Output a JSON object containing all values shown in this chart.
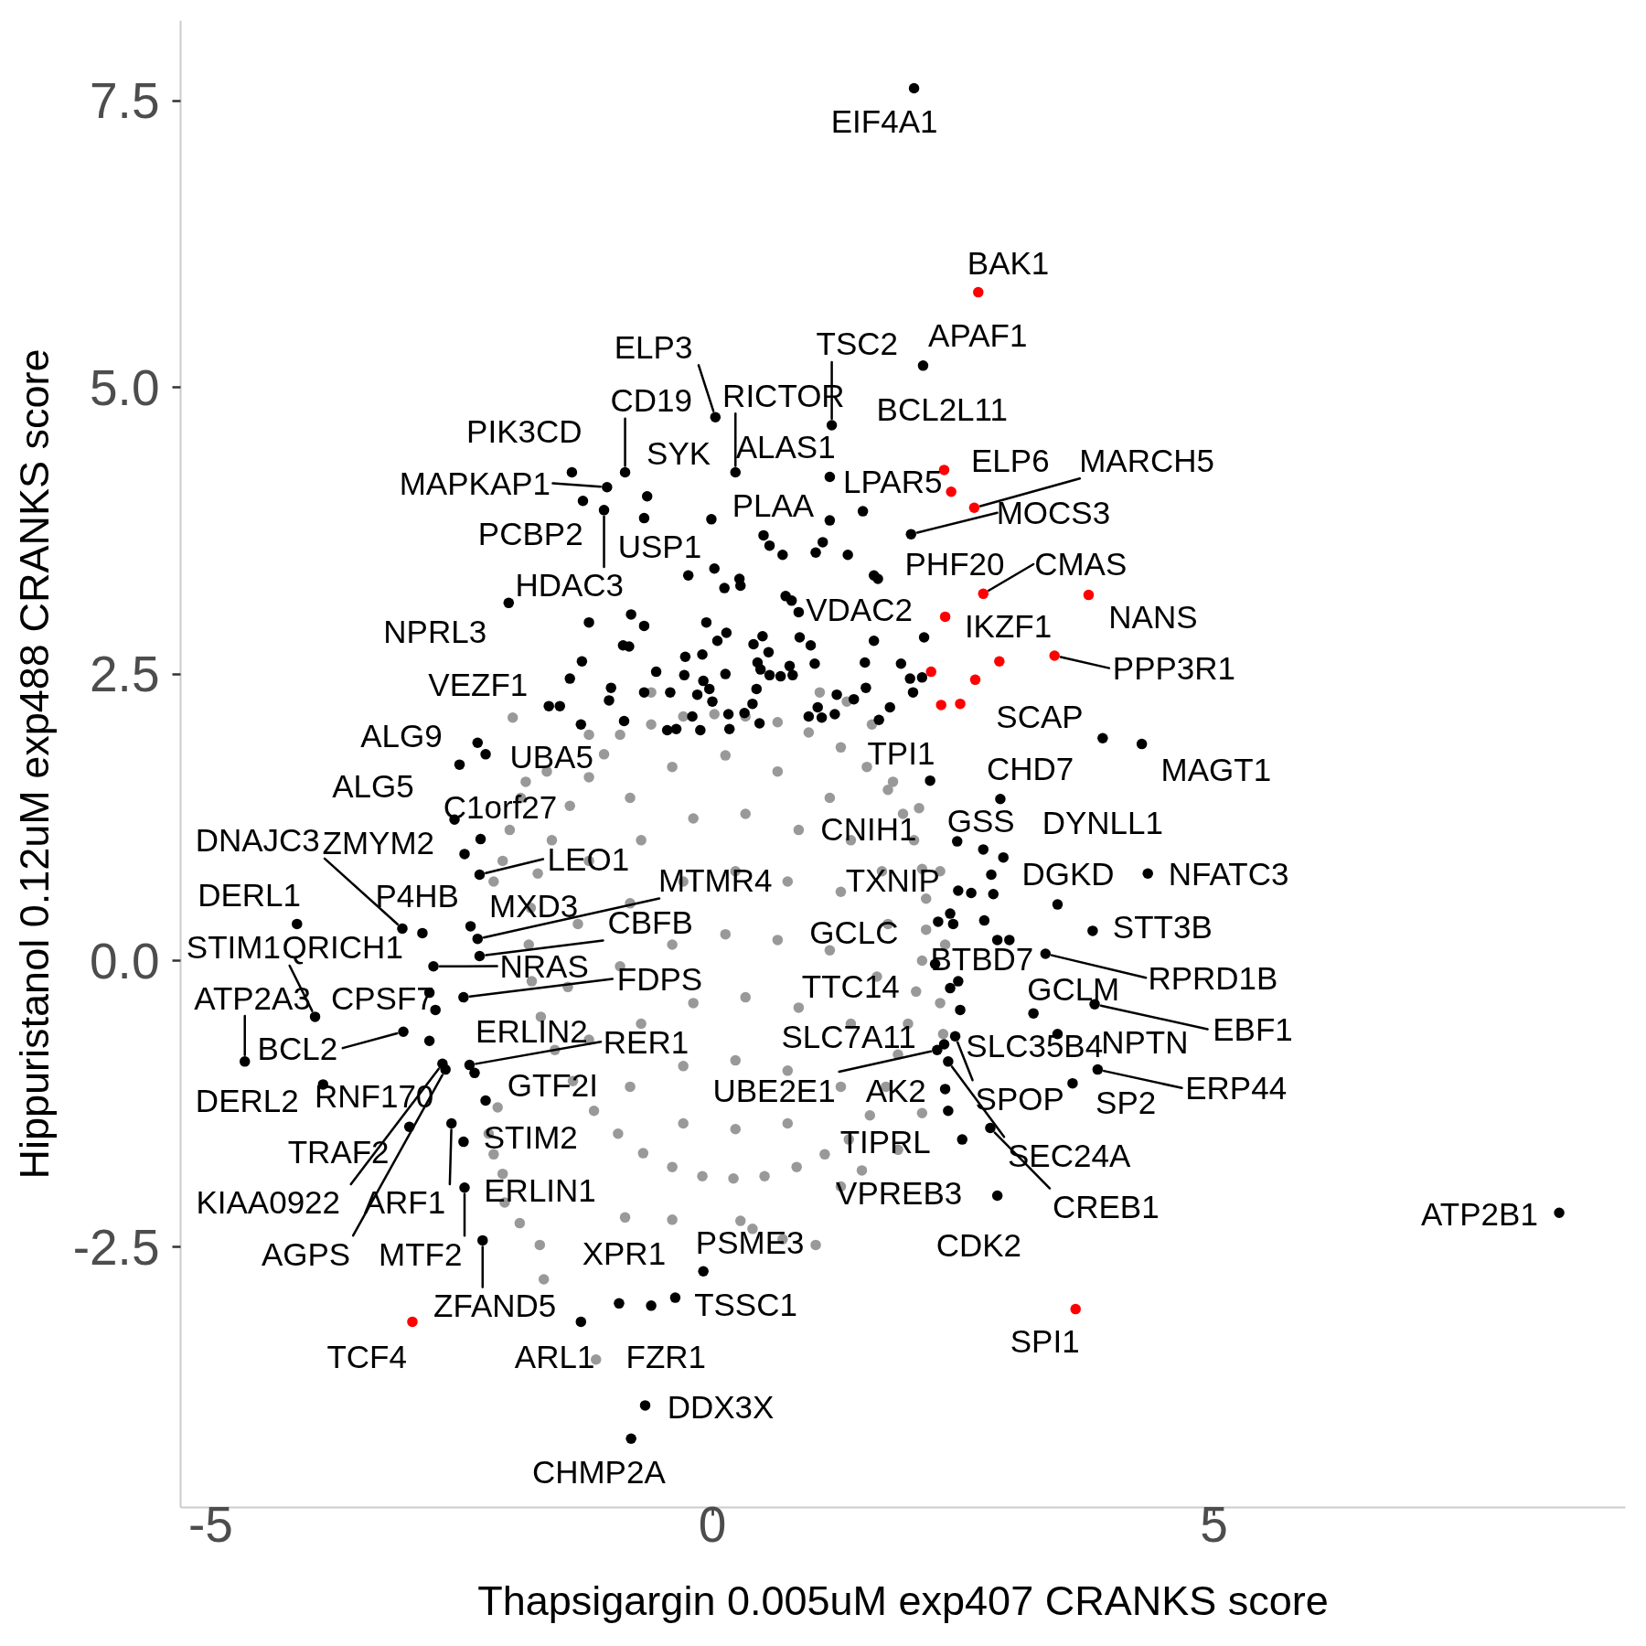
{
  "chart_data": {
    "type": "scatter",
    "xlabel": "Thapsigargin 0.005uM exp407 CRANKS score",
    "ylabel": "Hippuristanol 0.12uM exp488 CRANKS score",
    "xlim": [
      -5.3,
      9.1
    ],
    "ylim": [
      -4.77,
      8.2
    ],
    "xticks": [
      -5,
      0,
      5
    ],
    "yticks": [
      -2.5,
      {
        "value": 0,
        "label": "0.0"
      },
      2.5,
      {
        "value": 5,
        "label": "5.0"
      },
      7.5
    ],
    "marker": "circle",
    "series": [
      {
        "color": "#999999",
        "x": [
          -0.92,
          -0.61,
          -0.29,
          0.02,
          0.33,
          0.65,
          0.96,
          1.28,
          1.54,
          1.75,
          1.9,
          2.01,
          2.09,
          2.13,
          2.13,
          2.09,
          2.03,
          1.95,
          1.85,
          1.73,
          1.57,
          1.36,
          1.12,
          0.84,
          0.52,
          0.21,
          -0.1,
          -0.4,
          -0.69,
          -0.94,
          -1.18,
          -1.39,
          -1.57,
          -1.71,
          -1.8,
          -1.83,
          -1.81,
          -1.74,
          -1.6,
          -1.42,
          -1.23,
          -1.08,
          -0.82,
          -0.4,
          0.13,
          0.65,
          1.17,
          -1.23,
          -0.71,
          -0.19,
          0.33,
          0.86,
          1.38,
          1.69,
          -1.34,
          -0.82,
          -0.29,
          0.23,
          0.75,
          1.28,
          1.75,
          -1.44,
          -0.92,
          -0.4,
          0.13,
          0.65,
          1.17,
          1.64,
          -1.23,
          -0.71,
          -0.19,
          0.33,
          0.86,
          1.38,
          -0.82,
          -0.29,
          0.23,
          0.75,
          1.28,
          -0.29,
          0.23,
          0.75,
          -1.99,
          -1.16,
          -1.68,
          -1.72,
          -1.92,
          -2.07,
          -2.09,
          -2.18,
          -2.23,
          -2.14,
          -2.18,
          -2.09,
          -2.02,
          -1.91,
          -1.86,
          -1.65,
          -0.87,
          -0.4,
          0.28,
          0.4,
          0.7,
          1.03,
          1.28,
          1.49,
          1.85,
          2.09,
          2.3,
          2.27,
          2.32,
          2.27,
          2.06,
          1.8,
          1.59,
          1.34,
          1.07,
          -0.61,
          -1.23
        ],
        "values": [
          1.97,
          2.06,
          2.13,
          2.15,
          2.13,
          2.08,
          1.99,
          1.86,
          1.69,
          1.49,
          1.28,
          1.05,
          0.8,
          0.54,
          0.27,
          0.0,
          -0.27,
          -0.55,
          -0.82,
          -1.1,
          -1.35,
          -1.56,
          -1.69,
          -1.8,
          -1.88,
          -1.9,
          -1.88,
          -1.8,
          -1.68,
          -1.51,
          -1.31,
          -1.05,
          -0.78,
          -0.49,
          -0.18,
          0.14,
          0.46,
          0.76,
          1.05,
          1.35,
          1.6,
          1.8,
          1.42,
          1.69,
          1.79,
          1.65,
          1.42,
          0.87,
          1.05,
          1.24,
          1.28,
          1.14,
          1.05,
          0.78,
          0.32,
          0.5,
          0.69,
          0.78,
          0.69,
          0.6,
          0.32,
          -0.23,
          -0.05,
          0.14,
          0.23,
          0.18,
          0.09,
          -0.14,
          -0.69,
          -0.55,
          -0.37,
          -0.32,
          -0.41,
          -0.55,
          -1.1,
          -0.92,
          -0.87,
          -0.96,
          -1.1,
          -1.42,
          -1.47,
          -1.42,
          2.12,
          -3.48,
          -2.78,
          -2.48,
          -2.29,
          -2.11,
          -1.86,
          -1.69,
          -1.51,
          -1.28,
          0.69,
          0.87,
          1.14,
          1.42,
          1.56,
          1.65,
          -2.24,
          -2.26,
          -2.27,
          -2.34,
          -2.43,
          -2.48,
          -1.97,
          -1.83,
          -1.65,
          -1.33,
          -0.64,
          -0.37,
          0.14,
          0.78,
          1.33,
          1.56,
          2.06,
          2.26,
          2.34,
          2.34,
          1.97
        ]
      },
      {
        "color": "#000000",
        "x": [
          2.01,
          2.1,
          1.19,
          0.03,
          -0.87,
          0.23,
          -1.4,
          -0.65,
          1.17,
          -1.05,
          1.5,
          1.98,
          0.51,
          -1.29,
          -0.68,
          1.65,
          -1.08,
          0.86,
          -2.03,
          -1.63,
          3.89,
          -2.34,
          -2.26,
          2.17,
          2.87,
          4.28,
          -2.52,
          -2.57,
          2.7,
          2.9,
          2.44,
          -3.09,
          -2.47,
          -2.32,
          4.34,
          -2.34,
          3.44,
          2.45,
          -4.14,
          -2.89,
          -2.41,
          -3.96,
          -2.82,
          -2.32,
          3.79,
          2.25,
          2.45,
          3.32,
          -4.66,
          -2.76,
          -2.78,
          -2.48,
          2.37,
          3.2,
          -3.08,
          -2.37,
          -2.42,
          2.31,
          3.81,
          3.44,
          2.47,
          -3.88,
          -2.82,
          -2.26,
          2.24,
          2.32,
          3.84,
          2.42,
          3.59,
          -3.02,
          -2.48,
          2.35,
          2.35,
          -2.69,
          -2.6,
          2.49,
          2.77,
          8.44,
          -2.66,
          -2.47,
          -0.93,
          -0.09,
          2.84,
          -2.29,
          -0.37,
          -1.31,
          -0.61,
          -0.67,
          -0.81,
          -0.01,
          1.17,
          0.57,
          0.7,
          1.1,
          1.03,
          1.35,
          -0.24,
          0.02,
          0.27,
          0.12,
          0.28,
          1.61,
          0.73,
          0.79,
          -0.68,
          -0.06,
          0.14,
          0.05,
          0.87,
          0.98,
          1.61,
          2.11,
          -0.27,
          -0.1,
          -0.56,
          -0.28,
          0.13,
          -0.09,
          0.41,
          0.5,
          0.56,
          0.45,
          0.48,
          0.57,
          0.68,
          0.77,
          0.8,
          0.44,
          1.02,
          1.52,
          1.88,
          1.97,
          2.09,
          2.0,
          -0.42,
          -0.15,
          -0.03,
          0.0,
          0.16,
          -0.2,
          -0.36,
          -0.12,
          -0.45,
          0.17,
          0.32,
          0.4,
          0.47,
          1.24,
          1.41,
          1.53,
          1.05,
          0.96,
          1.09,
          1.22,
          1.77,
          1.66,
          -1.23,
          -0.81,
          -0.89,
          -0.83,
          -1.3,
          -1.42,
          -1.01,
          -1.03,
          -1.52,
          -1.31,
          -0.88,
          -0.68,
          2.78,
          2.58,
          2.8,
          2.4,
          2.37,
          2.71,
          2.84,
          2.96,
          2.22,
          -2.31
        ],
        "values": [
          7.61,
          5.19,
          4.67,
          4.74,
          4.26,
          4.26,
          4.26,
          4.05,
          4.22,
          4.13,
          3.92,
          3.72,
          3.71,
          4.01,
          3.86,
          3.33,
          3.93,
          3.04,
          3.12,
          2.22,
          1.94,
          1.9,
          1.8,
          1.57,
          1.41,
          1.89,
          1.71,
          1.23,
          0.97,
          0.9,
          1.04,
          0.28,
          0.93,
          0.75,
          0.76,
          0.19,
          0.49,
          0.61,
          0.32,
          0.24,
          0.3,
          -0.49,
          -0.28,
          0.04,
          0.26,
          0.34,
          -0.18,
          0.06,
          -0.88,
          -0.43,
          -0.05,
          -0.32,
          -0.24,
          -0.46,
          -0.62,
          -0.98,
          -0.91,
          -0.73,
          -0.38,
          -0.64,
          -0.43,
          -1.08,
          -0.7,
          -1.22,
          -0.78,
          -1.12,
          -0.95,
          -0.66,
          -1.07,
          -1.45,
          -1.58,
          -1.31,
          -0.88,
          -0.9,
          -1.42,
          -1.56,
          -1.46,
          -2.2,
          -0.95,
          -1.98,
          -2.99,
          -2.71,
          -2.05,
          -2.44,
          -2.94,
          -3.15,
          -3.01,
          -3.88,
          -4.17,
          3.85,
          3.84,
          3.62,
          3.54,
          3.65,
          3.56,
          3.54,
          3.36,
          3.42,
          3.33,
          3.25,
          3.27,
          3.36,
          3.18,
          3.14,
          2.92,
          2.95,
          2.86,
          2.79,
          2.82,
          2.75,
          2.79,
          2.82,
          2.65,
          2.67,
          2.52,
          2.49,
          2.5,
          2.44,
          2.76,
          2.83,
          2.69,
          2.6,
          2.54,
          2.49,
          2.48,
          2.57,
          2.49,
          2.37,
          2.59,
          2.6,
          2.59,
          2.46,
          2.47,
          2.34,
          2.34,
          2.32,
          2.37,
          2.26,
          2.15,
          2.13,
          2.02,
          2.01,
          2.01,
          2.02,
          2.16,
          2.24,
          2.07,
          2.32,
          2.28,
          2.38,
          2.21,
          2.13,
          2.12,
          2.15,
          2.21,
          2.1,
          2.95,
          3.02,
          2.75,
          2.74,
          2.61,
          2.46,
          2.38,
          2.27,
          2.22,
          2.06,
          2.09,
          2.34,
          0.75,
          0.59,
          0.58,
          0.32,
          0.41,
          0.35,
          0.18,
          0.18,
          -0.03,
          1.06
        ]
      },
      {
        "color": "#ff0000",
        "x": [
          2.65,
          2.31,
          2.38,
          2.61,
          2.7,
          3.75,
          2.32,
          3.41,
          -2.99,
          3.62,
          2.86,
          2.18,
          2.62,
          2.28,
          2.47
        ],
        "values": [
          5.83,
          4.28,
          4.09,
          3.95,
          3.2,
          3.19,
          3.0,
          2.66,
          -3.15,
          -3.04,
          2.61,
          2.52,
          2.45,
          2.23,
          2.24
        ]
      }
    ],
    "annotations": [
      {
        "text": "EIF4A1",
        "x": 2.01,
        "y": 7.61
      },
      {
        "text": "BAK1",
        "x": 2.65,
        "y": 5.83
      },
      {
        "text": "APAF1",
        "x": 2.1,
        "y": 5.19
      },
      {
        "text": "TSC2",
        "x": 1.19,
        "y": 4.67
      },
      {
        "text": "ELP3",
        "x": 0.03,
        "y": 4.74
      },
      {
        "text": "CD19",
        "x": -0.87,
        "y": 4.26
      },
      {
        "text": "RICTOR",
        "x": 0.23,
        "y": 4.26
      },
      {
        "text": "BCL2L11",
        "x": 2.31,
        "y": 4.28
      },
      {
        "text": "PIK3CD",
        "x": -1.4,
        "y": 4.26
      },
      {
        "text": "SYK",
        "x": -0.65,
        "y": 4.05
      },
      {
        "text": "ALAS1",
        "x": 1.17,
        "y": 4.22
      },
      {
        "text": "MAPKAP1",
        "x": -1.05,
        "y": 4.13
      },
      {
        "text": "ELP6",
        "x": 2.38,
        "y": 4.09
      },
      {
        "text": "MARCH5",
        "x": 2.61,
        "y": 3.95
      },
      {
        "text": "LPAR5",
        "x": 1.5,
        "y": 3.92
      },
      {
        "text": "MOCS3",
        "x": 1.98,
        "y": 3.72
      },
      {
        "text": "PLAA",
        "x": 0.51,
        "y": 3.71
      },
      {
        "text": "PCBP2",
        "x": -1.29,
        "y": 4.01
      },
      {
        "text": "USP1",
        "x": -0.68,
        "y": 3.86
      },
      {
        "text": "PHF20",
        "x": 1.65,
        "y": 3.33
      },
      {
        "text": "CMAS",
        "x": 2.7,
        "y": 3.2
      },
      {
        "text": "HDAC3",
        "x": -1.08,
        "y": 3.93
      },
      {
        "text": "NANS",
        "x": 3.75,
        "y": 3.19
      },
      {
        "text": "VDAC2",
        "x": 0.86,
        "y": 3.04
      },
      {
        "text": "IKZF1",
        "x": 2.32,
        "y": 3.0
      },
      {
        "text": "NPRL3",
        "x": -2.03,
        "y": 3.12
      },
      {
        "text": "PPP3R1",
        "x": 3.41,
        "y": 2.66
      },
      {
        "text": "VEZF1",
        "x": -1.63,
        "y": 2.22
      },
      {
        "text": "SCAP",
        "x": 3.89,
        "y": 1.94
      },
      {
        "text": "ALG9",
        "x": -2.34,
        "y": 1.9
      },
      {
        "text": "UBA5",
        "x": -2.26,
        "y": 1.8
      },
      {
        "text": "TPI1",
        "x": 2.17,
        "y": 1.57
      },
      {
        "text": "CHD7",
        "x": 2.87,
        "y": 1.41
      },
      {
        "text": "MAGT1",
        "x": 4.28,
        "y": 1.89
      },
      {
        "text": "ALG5",
        "x": -2.52,
        "y": 1.71
      },
      {
        "text": "C1orf27",
        "x": -2.57,
        "y": 1.23
      },
      {
        "text": "GSS",
        "x": 2.7,
        "y": 0.97
      },
      {
        "text": "DYNLL1",
        "x": 2.9,
        "y": 0.9
      },
      {
        "text": "CNIH1",
        "x": 2.44,
        "y": 1.04
      },
      {
        "text": "DNAJC3",
        "x": -3.09,
        "y": 0.28
      },
      {
        "text": "ZMYM2",
        "x": -2.47,
        "y": 0.93
      },
      {
        "text": "LEO1",
        "x": -2.32,
        "y": 0.75
      },
      {
        "text": "NFATC3",
        "x": 4.34,
        "y": 0.76
      },
      {
        "text": "MTMR4",
        "x": -2.34,
        "y": 0.19
      },
      {
        "text": "DGKD",
        "x": 3.44,
        "y": 0.49
      },
      {
        "text": "TXNIP",
        "x": 2.45,
        "y": 0.61
      },
      {
        "text": "DERL1",
        "x": -4.14,
        "y": 0.32
      },
      {
        "text": "P4HB",
        "x": -2.89,
        "y": 0.24
      },
      {
        "text": "MXD3",
        "x": -2.41,
        "y": 0.3
      },
      {
        "text": "STIM1",
        "x": -3.96,
        "y": -0.49
      },
      {
        "text": "QRICH1",
        "x": -2.82,
        "y": -0.28
      },
      {
        "text": "CBFB",
        "x": -2.32,
        "y": 0.04
      },
      {
        "text": "STT3B",
        "x": 3.79,
        "y": 0.26
      },
      {
        "text": "GCLC",
        "x": 2.25,
        "y": 0.34
      },
      {
        "text": "BTBD7",
        "x": 2.45,
        "y": -0.18
      },
      {
        "text": "RPRD1B",
        "x": 3.32,
        "y": 0.06
      },
      {
        "text": "ATP2A3",
        "x": -4.66,
        "y": -0.88
      },
      {
        "text": "CPSF7",
        "x": -2.76,
        "y": -0.43
      },
      {
        "text": "NRAS",
        "x": -2.78,
        "y": -0.05
      },
      {
        "text": "FDPS",
        "x": -2.48,
        "y": -0.32
      },
      {
        "text": "TTC14",
        "x": 2.37,
        "y": -0.24
      },
      {
        "text": "GCLM",
        "x": 3.2,
        "y": -0.46
      },
      {
        "text": "BCL2",
        "x": -3.08,
        "y": -0.62
      },
      {
        "text": "ERLIN2",
        "x": -2.37,
        "y": -0.98
      },
      {
        "text": "RER1",
        "x": -2.42,
        "y": -0.91
      },
      {
        "text": "SLC7A11",
        "x": 2.31,
        "y": -0.73
      },
      {
        "text": "EBF1",
        "x": 3.81,
        "y": -0.38
      },
      {
        "text": "NPTN",
        "x": 3.44,
        "y": -0.64
      },
      {
        "text": "SLC35B4",
        "x": 2.47,
        "y": -0.43
      },
      {
        "text": "DERL2",
        "x": -3.88,
        "y": -1.08
      },
      {
        "text": "RNF170",
        "x": -2.82,
        "y": -0.7
      },
      {
        "text": "GTF2I",
        "x": -2.26,
        "y": -1.22
      },
      {
        "text": "UBE2E1",
        "x": 2.24,
        "y": -0.78
      },
      {
        "text": "AK2",
        "x": 2.32,
        "y": -1.12
      },
      {
        "text": "ERP44",
        "x": 3.84,
        "y": -0.95
      },
      {
        "text": "SPOP",
        "x": 2.42,
        "y": -0.66
      },
      {
        "text": "SP2",
        "x": 3.59,
        "y": -1.07
      },
      {
        "text": "TRAF2",
        "x": -3.02,
        "y": -1.45
      },
      {
        "text": "STIM2",
        "x": -2.48,
        "y": -1.58
      },
      {
        "text": "TIPRL",
        "x": 2.35,
        "y": -1.31
      },
      {
        "text": "SEC24A",
        "x": 2.35,
        "y": -0.88
      },
      {
        "text": "KIAA0922",
        "x": -2.69,
        "y": -0.9
      },
      {
        "text": "ARF1",
        "x": -2.6,
        "y": -1.42
      },
      {
        "text": "ERLIN1",
        "x": -2.47,
        "y": -1.98
      },
      {
        "text": "VPREB3",
        "x": 2.49,
        "y": -1.56
      },
      {
        "text": "CREB1",
        "x": 2.77,
        "y": -1.46
      },
      {
        "text": "ATP2B1",
        "x": 8.44,
        "y": -2.2
      },
      {
        "text": "AGPS",
        "x": -2.66,
        "y": -0.95
      },
      {
        "text": "MTF2",
        "x": -2.47,
        "y": -1.98
      },
      {
        "text": "XPR1",
        "x": -0.93,
        "y": -2.99
      },
      {
        "text": "PSME3",
        "x": -0.09,
        "y": -2.71
      },
      {
        "text": "CDK2",
        "x": 2.84,
        "y": -2.05
      },
      {
        "text": "ZFAND5",
        "x": -2.29,
        "y": -2.44
      },
      {
        "text": "TSSC1",
        "x": -0.37,
        "y": -2.94
      },
      {
        "text": "TCF4",
        "x": -2.99,
        "y": -3.15
      },
      {
        "text": "ARL1",
        "x": -1.31,
        "y": -3.15
      },
      {
        "text": "FZR1",
        "x": -0.61,
        "y": -3.01
      },
      {
        "text": "SPI1",
        "x": 3.62,
        "y": -3.04
      },
      {
        "text": "DDX3X",
        "x": -0.67,
        "y": -3.88
      },
      {
        "text": "CHMP2A",
        "x": -0.81,
        "y": -4.17
      }
    ]
  }
}
